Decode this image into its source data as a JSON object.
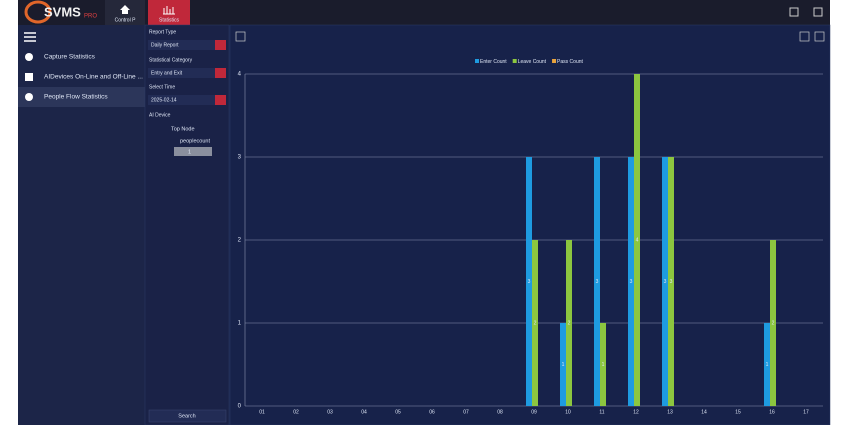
{
  "header": {
    "logo": "SVMS",
    "logo_sub": "PRO",
    "tabs": [
      "Control P",
      "Statistics"
    ]
  },
  "sidebar": {
    "items": [
      "Capture Statistics",
      "AIDevices On-Line and Off-Line ...",
      "People Flow Statistics"
    ]
  },
  "filters": {
    "report_type_label": "Report Type",
    "report_type": "Daily Report",
    "category_label": "Statistical Category",
    "category": "Entry and Exit",
    "time_label": "Select Time",
    "time": "2025-02-14",
    "device_label": "AI Device",
    "tree": [
      "Top Node",
      "peoplecount",
      "1"
    ],
    "search": "Search"
  },
  "chart_data": {
    "type": "bar",
    "categories": [
      "01",
      "02",
      "03",
      "04",
      "05",
      "06",
      "07",
      "08",
      "09",
      "10",
      "11",
      "12",
      "13",
      "14",
      "15",
      "16",
      "17"
    ],
    "series": [
      {
        "name": "Enter Count",
        "color": "#1e9be0",
        "values": [
          0,
          0,
          0,
          0,
          0,
          0,
          0,
          0,
          3,
          1,
          3,
          3,
          3,
          0,
          0,
          1,
          0
        ]
      },
      {
        "name": "Leave Count",
        "color": "#8cc63f",
        "values": [
          0,
          0,
          0,
          0,
          0,
          0,
          0,
          0,
          2,
          2,
          1,
          4,
          3,
          0,
          0,
          2,
          0
        ]
      },
      {
        "name": "Pass Count",
        "color": "#e8a33c",
        "values": [
          0,
          0,
          0,
          0,
          0,
          0,
          0,
          0,
          0,
          0,
          0,
          0,
          0,
          0,
          0,
          0,
          0
        ]
      }
    ],
    "ylim": [
      0,
      4
    ],
    "yticks": [
      0,
      1,
      2,
      3,
      4
    ],
    "grid": true
  }
}
